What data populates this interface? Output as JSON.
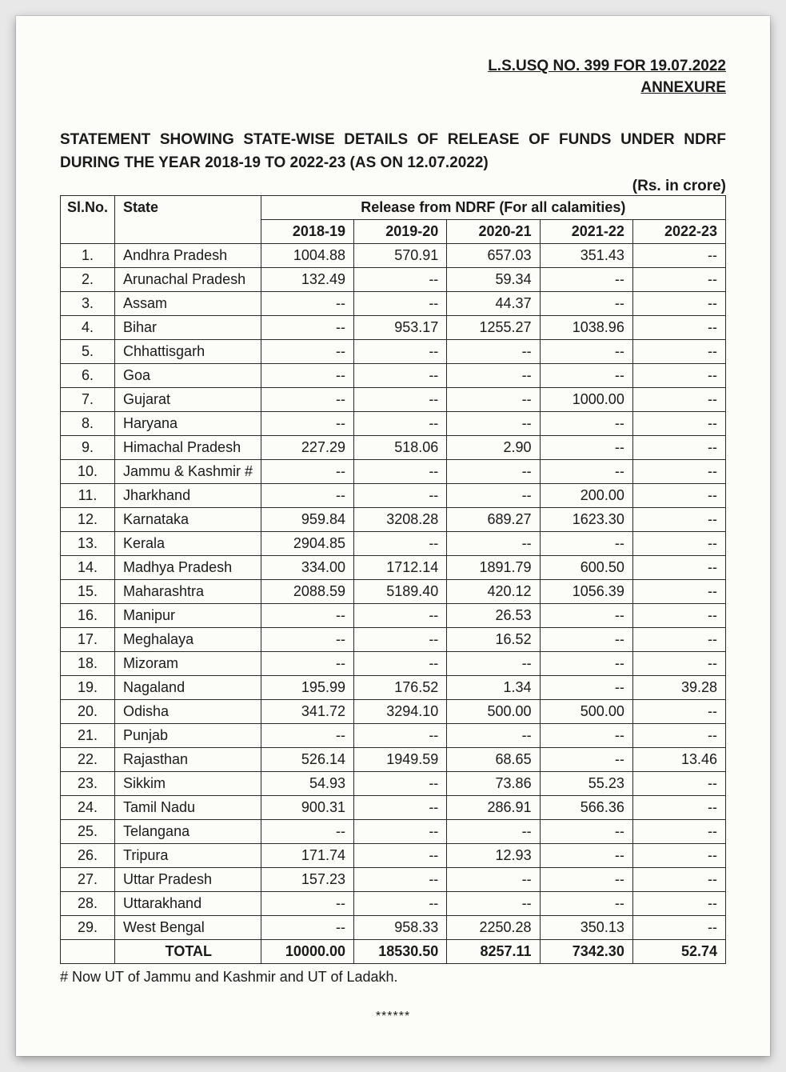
{
  "header": {
    "ref": "L.S.USQ NO. 399 FOR 19.07.2022",
    "annexure": "ANNEXURE"
  },
  "title_line1": "STATEMENT SHOWING STATE-WISE DETAILS OF RELEASE OF FUNDS UNDER NDRF",
  "title_line2": "DURING THE YEAR 2018-19 TO 2022-23 (AS ON 12.07.2022)",
  "units": "(Rs. in crore)",
  "table": {
    "head": {
      "slno": "Sl.No.",
      "state": "State",
      "group": "Release from NDRF (For all calamities)",
      "years": [
        "2018-19",
        "2019-20",
        "2020-21",
        "2021-22",
        "2022-23"
      ]
    },
    "rows": [
      {
        "n": "1.",
        "state": "Andhra Pradesh",
        "v": [
          "1004.88",
          "570.91",
          "657.03",
          "351.43",
          "--"
        ]
      },
      {
        "n": "2.",
        "state": "Arunachal Pradesh",
        "v": [
          "132.49",
          "--",
          "59.34",
          "--",
          "--"
        ]
      },
      {
        "n": "3.",
        "state": "Assam",
        "v": [
          "--",
          "--",
          "44.37",
          "--",
          "--"
        ]
      },
      {
        "n": "4.",
        "state": "Bihar",
        "v": [
          "--",
          "953.17",
          "1255.27",
          "1038.96",
          "--"
        ]
      },
      {
        "n": "5.",
        "state": "Chhattisgarh",
        "v": [
          "--",
          "--",
          "--",
          "--",
          "--"
        ]
      },
      {
        "n": "6.",
        "state": "Goa",
        "v": [
          "--",
          "--",
          "--",
          "--",
          "--"
        ]
      },
      {
        "n": "7.",
        "state": "Gujarat",
        "v": [
          "--",
          "--",
          "--",
          "1000.00",
          "--"
        ]
      },
      {
        "n": "8.",
        "state": "Haryana",
        "v": [
          "--",
          "--",
          "--",
          "--",
          "--"
        ]
      },
      {
        "n": "9.",
        "state": "Himachal Pradesh",
        "v": [
          "227.29",
          "518.06",
          "2.90",
          "--",
          "--"
        ]
      },
      {
        "n": "10.",
        "state": "Jammu & Kashmir #",
        "v": [
          "--",
          "--",
          "--",
          "--",
          "--"
        ]
      },
      {
        "n": "11.",
        "state": "Jharkhand",
        "v": [
          "--",
          "--",
          "--",
          "200.00",
          "--"
        ]
      },
      {
        "n": "12.",
        "state": "Karnataka",
        "v": [
          "959.84",
          "3208.28",
          "689.27",
          "1623.30",
          "--"
        ]
      },
      {
        "n": "13.",
        "state": "Kerala",
        "v": [
          "2904.85",
          "--",
          "--",
          "--",
          "--"
        ]
      },
      {
        "n": "14.",
        "state": "Madhya Pradesh",
        "v": [
          "334.00",
          "1712.14",
          "1891.79",
          "600.50",
          "--"
        ]
      },
      {
        "n": "15.",
        "state": "Maharashtra",
        "v": [
          "2088.59",
          "5189.40",
          "420.12",
          "1056.39",
          "--"
        ]
      },
      {
        "n": "16.",
        "state": "Manipur",
        "v": [
          "--",
          "--",
          "26.53",
          "--",
          "--"
        ]
      },
      {
        "n": "17.",
        "state": "Meghalaya",
        "v": [
          "--",
          "--",
          "16.52",
          "--",
          "--"
        ]
      },
      {
        "n": "18.",
        "state": "Mizoram",
        "v": [
          "--",
          "--",
          "--",
          "--",
          "--"
        ]
      },
      {
        "n": "19.",
        "state": "Nagaland",
        "v": [
          "195.99",
          "176.52",
          "1.34",
          "--",
          "39.28"
        ]
      },
      {
        "n": "20.",
        "state": "Odisha",
        "v": [
          "341.72",
          "3294.10",
          "500.00",
          "500.00",
          "--"
        ]
      },
      {
        "n": "21.",
        "state": "Punjab",
        "v": [
          "--",
          "--",
          "--",
          "--",
          "--"
        ]
      },
      {
        "n": "22.",
        "state": "Rajasthan",
        "v": [
          "526.14",
          "1949.59",
          "68.65",
          "--",
          "13.46"
        ]
      },
      {
        "n": "23.",
        "state": "Sikkim",
        "v": [
          "54.93",
          "--",
          "73.86",
          "55.23",
          "--"
        ]
      },
      {
        "n": "24.",
        "state": "Tamil Nadu",
        "v": [
          "900.31",
          "--",
          "286.91",
          "566.36",
          "--"
        ]
      },
      {
        "n": "25.",
        "state": "Telangana",
        "v": [
          "--",
          "--",
          "--",
          "--",
          "--"
        ]
      },
      {
        "n": "26.",
        "state": "Tripura",
        "v": [
          "171.74",
          "--",
          "12.93",
          "--",
          "--"
        ]
      },
      {
        "n": "27.",
        "state": "Uttar Pradesh",
        "v": [
          "157.23",
          "--",
          "--",
          "--",
          "--"
        ]
      },
      {
        "n": "28.",
        "state": "Uttarakhand",
        "v": [
          "--",
          "--",
          "--",
          "--",
          "--"
        ]
      },
      {
        "n": "29.",
        "state": "West Bengal",
        "v": [
          "--",
          "958.33",
          "2250.28",
          "350.13",
          "--"
        ]
      }
    ],
    "total": {
      "label": "TOTAL",
      "v": [
        "10000.00",
        "18530.50",
        "8257.11",
        "7342.30",
        "52.74"
      ]
    }
  },
  "footnote": "#  Now UT of Jammu and Kashmir and UT of Ladakh.",
  "endmark": "******",
  "style": {
    "page_bg": "#fcfcf8",
    "text_color": "#1a1a1a",
    "border_color": "#2a2a2a",
    "font_family": "Arial",
    "base_fontsize_pt": 14,
    "col_widths_pct": [
      8,
      22,
      14,
      14,
      14,
      14,
      14
    ]
  }
}
